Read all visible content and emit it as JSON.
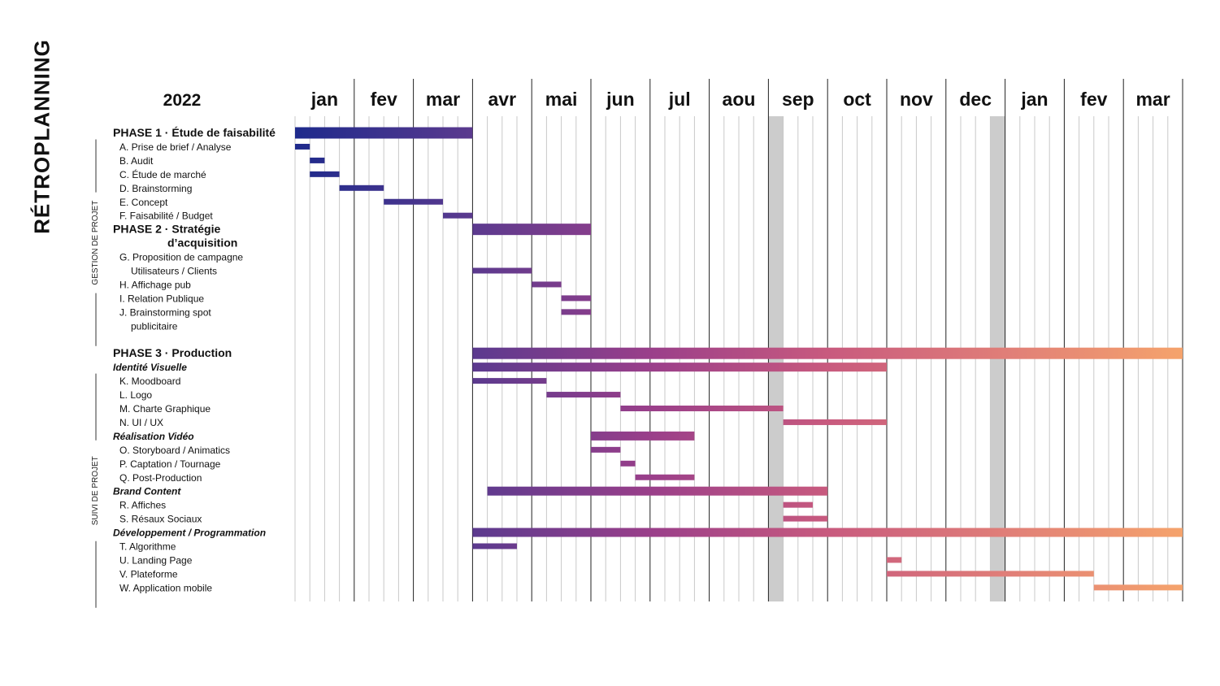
{
  "page": {
    "title": "RÉTROPLANNING"
  },
  "chart_data": {
    "type": "gantt",
    "year_label": "2022",
    "months": [
      "jan",
      "fev",
      "mar",
      "avr",
      "mai",
      "jun",
      "jul",
      "aou",
      "sep",
      "oct",
      "nov",
      "dec",
      "jan",
      "fev",
      "mar"
    ],
    "weeks_per_month": 4,
    "vacation_weeks": [
      32,
      47
    ],
    "colors": {
      "gradient": [
        "#1e2a8c",
        "#5b3a8e",
        "#9a3f8a",
        "#c85a7e",
        "#e07e78",
        "#f5a36c"
      ],
      "vacation": "#cccccc",
      "grid": "#c9c9c9",
      "month_line": "#222222"
    },
    "sections": [
      {
        "label": "GESTION DE PROJET",
        "first_row": 0,
        "last_row": 15
      },
      {
        "label": "SUIVI DE PROJET",
        "first_row": 17,
        "last_row": 34
      }
    ],
    "rows": [
      {
        "label": "PHASE 1 · Étude de faisabilité",
        "kind": "phase",
        "start": 0,
        "end": 12
      },
      {
        "label": "A. Prise de brief / Analyse",
        "kind": "task",
        "start": 0,
        "end": 1
      },
      {
        "label": "B. Audit",
        "kind": "task",
        "start": 1,
        "end": 2
      },
      {
        "label": "C. Étude de marché",
        "kind": "task",
        "start": 1,
        "end": 3
      },
      {
        "label": "D. Brainstorming",
        "kind": "task",
        "start": 3,
        "end": 6
      },
      {
        "label": "E. Concept",
        "kind": "task",
        "start": 6,
        "end": 10
      },
      {
        "label": "F. Faisabilité / Budget",
        "kind": "task",
        "start": 10,
        "end": 12
      },
      {
        "label": "PHASE 2 · Stratégie",
        "kind": "phase",
        "start": 12,
        "end": 20
      },
      {
        "label": "d’acquisition",
        "kind": "phase-cont"
      },
      {
        "label": "G. Proposition de campagne",
        "kind": "task"
      },
      {
        "label": "Utilisateurs / Clients",
        "kind": "task-cont",
        "start": 12,
        "end": 16
      },
      {
        "label": "H. Affichage pub",
        "kind": "task",
        "start": 16,
        "end": 18
      },
      {
        "label": "I. Relation Publique",
        "kind": "task",
        "start": 18,
        "end": 20
      },
      {
        "label": "J. Brainstorming spot",
        "kind": "task",
        "start": 18,
        "end": 20
      },
      {
        "label": "publicitaire",
        "kind": "task-cont"
      },
      {
        "label": "",
        "kind": "blank"
      },
      {
        "label": "PHASE 3 · Production",
        "kind": "phase",
        "start": 12,
        "end": 60
      },
      {
        "label": "Identité Visuelle",
        "kind": "sub",
        "start": 12,
        "end": 40
      },
      {
        "label": "K. Moodboard",
        "kind": "task",
        "start": 12,
        "end": 17
      },
      {
        "label": "L. Logo",
        "kind": "task",
        "start": 17,
        "end": 22
      },
      {
        "label": "M. Charte Graphique",
        "kind": "task",
        "start": 22,
        "end": 33
      },
      {
        "label": "N. UI / UX",
        "kind": "task",
        "start": 33,
        "end": 40
      },
      {
        "label": "Réalisation Vidéo",
        "kind": "sub",
        "start": 20,
        "end": 27
      },
      {
        "label": "O. Storyboard / Animatics",
        "kind": "task",
        "start": 20,
        "end": 22
      },
      {
        "label": "P. Captation / Tournage",
        "kind": "task",
        "start": 22,
        "end": 23
      },
      {
        "label": "Q. Post-Production",
        "kind": "task",
        "start": 23,
        "end": 27
      },
      {
        "label": "Brand Content",
        "kind": "sub",
        "start": 13,
        "end": 36
      },
      {
        "label": "R. Affiches",
        "kind": "task",
        "start": 33,
        "end": 35
      },
      {
        "label": "S. Résaux Sociaux",
        "kind": "task",
        "start": 33,
        "end": 36
      },
      {
        "label": "Développement / Programmation",
        "kind": "sub",
        "start": 12,
        "end": 60
      },
      {
        "label": "T. Algorithme",
        "kind": "task",
        "start": 12,
        "end": 15
      },
      {
        "label": "U. Landing Page",
        "kind": "task",
        "start": 40,
        "end": 41
      },
      {
        "label": "V. Plateforme",
        "kind": "task",
        "start": 40,
        "end": 54
      },
      {
        "label": "W. Application mobile",
        "kind": "task",
        "start": 54,
        "end": 60
      }
    ]
  }
}
